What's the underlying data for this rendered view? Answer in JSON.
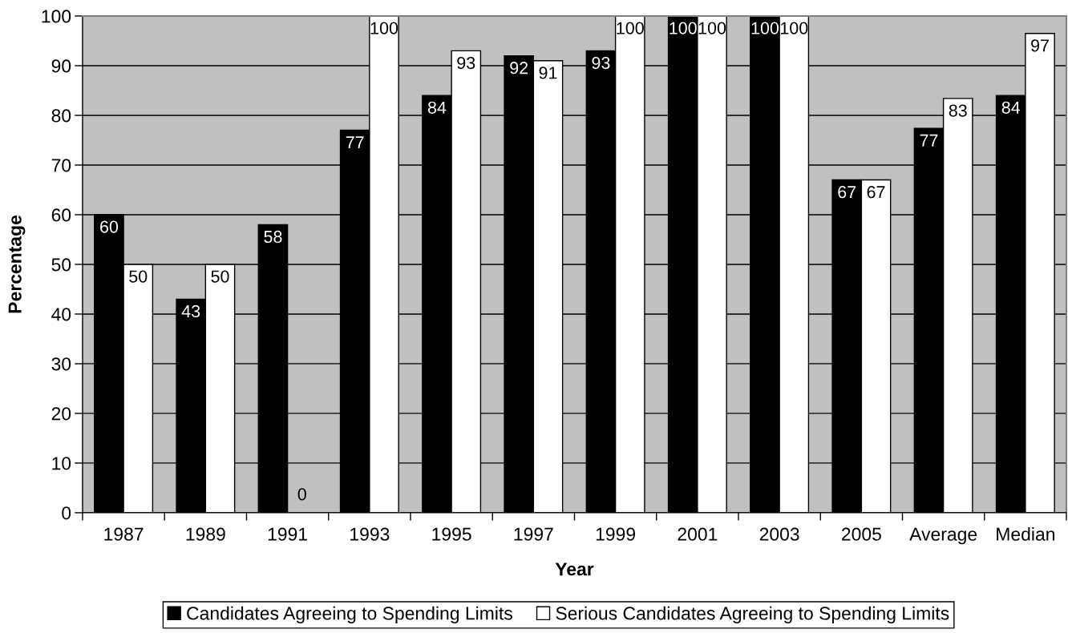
{
  "chart_data": {
    "type": "bar",
    "xlabel": "Year",
    "ylabel": "Percentage",
    "categories": [
      "1987",
      "1989",
      "1991",
      "1993",
      "1995",
      "1997",
      "1999",
      "2001",
      "2003",
      "2005",
      "Average",
      "Median"
    ],
    "series": [
      {
        "name": "Candidates Agreeing to Spending Limits",
        "color": "#000000",
        "values": [
          60,
          43,
          58,
          77,
          84,
          92,
          93,
          100,
          100,
          67,
          77.4,
          84
        ],
        "value_labels": [
          "60",
          "43",
          "58",
          "77",
          "84",
          "92",
          "93",
          "100",
          "100",
          "67",
          "77",
          "84"
        ]
      },
      {
        "name": "Serious Candidates Agreeing to Spending Limits",
        "color": "#ffffff",
        "values": [
          50,
          50,
          0,
          100,
          93,
          91,
          100,
          100,
          100,
          67,
          83.4,
          96.5
        ],
        "value_labels": [
          "50",
          "50",
          "0",
          "100",
          "93",
          "91",
          "100",
          "100",
          "100",
          "67",
          "83",
          "97"
        ]
      }
    ],
    "ylim": [
      0,
      100
    ],
    "yticks": [
      0,
      10,
      20,
      30,
      40,
      50,
      60,
      70,
      80,
      90,
      100
    ],
    "grid": "y",
    "legend": "bottom"
  }
}
